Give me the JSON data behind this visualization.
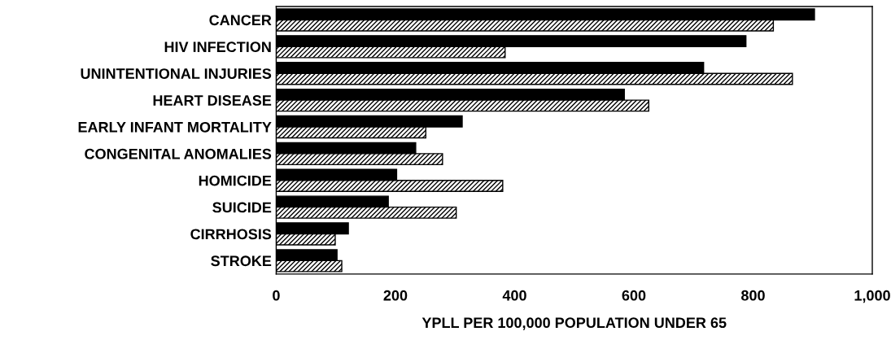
{
  "chart_data": {
    "type": "bar",
    "orientation": "horizontal",
    "xlabel": "YPLL PER 100,000 POPULATION UNDER 65",
    "categories": [
      "CANCER",
      "HIV INFECTION",
      "UNINTENTIONAL INJURIES",
      "HEART DISEASE",
      "EARLY INFANT MORTALITY",
      "CONGENITAL ANOMALIES",
      "HOMICIDE",
      "SUICIDE",
      "CIRRHOSIS",
      "STROKE"
    ],
    "series": [
      {
        "color": "#000000",
        "values": [
          903,
          788,
          717,
          584,
          312,
          234,
          202,
          188,
          121,
          102
        ]
      },
      {
        "color": "#000000",
        "values": [
          834,
          384,
          866,
          625,
          251,
          279,
          380,
          302,
          99,
          110
        ]
      }
    ],
    "xlim": [
      0,
      1000
    ],
    "xticks": [
      0,
      200,
      400,
      600,
      800,
      {
        "value": 1000,
        "label": "1,000"
      }
    ],
    "grid": false,
    "legend": false
  }
}
